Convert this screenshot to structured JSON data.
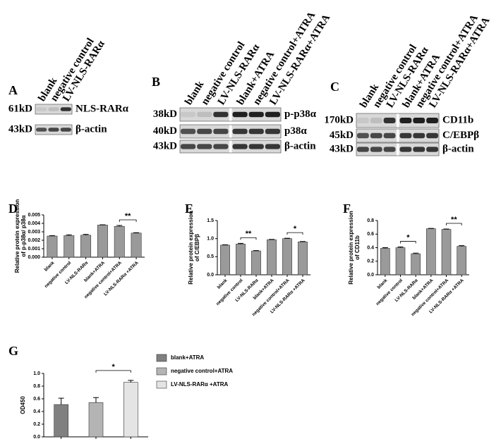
{
  "blots": [
    {
      "label": "A",
      "lanes": [
        "blank",
        "negative control",
        "LV-NLS-RARα"
      ],
      "rows": [
        {
          "kd": "61kD",
          "name": "NLS-RARα"
        },
        {
          "kd": "43kD",
          "name": "β-actin"
        }
      ]
    },
    {
      "label": "B",
      "lanes": [
        "blank",
        "negative control",
        "LV-NLS-RARα",
        "blank+ATRA",
        "negative control+ATRA",
        "LV-NLS-RARα+ATRA"
      ],
      "rows": [
        {
          "kd": "38kD",
          "name": "p-p38α"
        },
        {
          "kd": "40kD",
          "name": "p38α"
        },
        {
          "kd": "43kD",
          "name": "β-actin"
        }
      ]
    },
    {
      "label": "C",
      "lanes": [
        "blank",
        "negative control",
        "LV-NLS-RARα",
        "blank+ATRA",
        "negative control+ATRA",
        "LV-NLS-RARα+ATRA"
      ],
      "rows": [
        {
          "kd": "170kD",
          "name": "CD11b"
        },
        {
          "kd": "45kD",
          "name": "C/EBPβ"
        },
        {
          "kd": "43kD",
          "name": "β-actin"
        }
      ]
    }
  ],
  "chart_data": [
    {
      "type": "bar",
      "panel": "D",
      "ylabel": [
        "Relative protein expression",
        "of p-p38α/ p38α"
      ],
      "categories": [
        "blank",
        "negative control",
        "LV-NLS-RARα",
        "blank+ATRA",
        "negative control+ATRA",
        "LV-NLS-RARα +ATRA"
      ],
      "values": [
        0.0025,
        0.00255,
        0.0026,
        0.0038,
        0.00365,
        0.00285
      ],
      "errors": [
        5e-05,
        0.0001,
        0.0001,
        3e-05,
        0.0001,
        5e-05
      ],
      "color": "#9a9a9a",
      "ylim": [
        0,
        0.005
      ],
      "yticks": [
        {
          "value": 0,
          "label": "0.000"
        },
        {
          "value": 0.001,
          "label": "0.001"
        },
        {
          "value": 0.002,
          "label": "0.002"
        },
        {
          "value": 0.003,
          "label": "0.003"
        },
        {
          "value": 0.004,
          "label": "0.004"
        },
        {
          "value": 0.005,
          "label": "0.005"
        }
      ],
      "annotations": [
        {
          "text": "**",
          "from": 4,
          "to": 5
        }
      ]
    },
    {
      "type": "bar",
      "panel": "E",
      "ylabel": [
        "Relative protein expression",
        "of C/EBPβ"
      ],
      "categories": [
        "blank",
        "negative control",
        "LV-NLS-RARα",
        "blank+ATRA",
        "negative control+ATRA",
        "LV-NLS-RARα +ATRA"
      ],
      "values": [
        0.82,
        0.85,
        0.66,
        0.97,
        1.0,
        0.91
      ],
      "errors": [
        0.01,
        0.02,
        0.01,
        0.01,
        0.01,
        0.01
      ],
      "color": "#9a9a9a",
      "ylim": [
        0,
        1.5
      ],
      "yticks": [
        {
          "value": 0,
          "label": "0.0"
        },
        0.5,
        {
          "value": 1,
          "label": "1.0"
        },
        1.5
      ],
      "annotations": [
        {
          "text": "**",
          "from": 1,
          "to": 2
        },
        {
          "text": "*",
          "from": 4,
          "to": 5
        }
      ]
    },
    {
      "type": "bar",
      "panel": "F",
      "ylabel": [
        "Relative protein expression",
        "of CD11b"
      ],
      "categories": [
        "blank",
        "negative control",
        "LV-NLS-RARα",
        "blank+ATRA",
        "negative control+ATRA",
        "LV-NLS-RARα +ATRA"
      ],
      "values": [
        0.39,
        0.4,
        0.31,
        0.68,
        0.67,
        0.42
      ],
      "errors": [
        0.01,
        0.01,
        0.01,
        0.005,
        0.005,
        0.01
      ],
      "color": "#9a9a9a",
      "ylim": [
        0,
        0.8
      ],
      "yticks": [
        {
          "value": 0,
          "label": "0.0"
        },
        0.2,
        0.4,
        0.6,
        0.8
      ],
      "annotations": [
        {
          "text": "*",
          "from": 1,
          "to": 2
        },
        {
          "text": "**",
          "from": 4,
          "to": 5
        }
      ]
    },
    {
      "type": "legend-bar",
      "panel": "G",
      "ylabel": [
        "OD450"
      ],
      "categories": [
        "blank+ATRA",
        "negative control+ATRA",
        "LV-NLS-RARα +ATRA"
      ],
      "values": [
        0.51,
        0.54,
        0.86
      ],
      "errors": [
        0.1,
        0.08,
        0.03
      ],
      "colors": [
        "#808080",
        "#b4b4b4",
        "#e4e4e4"
      ],
      "ylim": [
        0,
        1
      ],
      "yticks": [
        {
          "value": 0,
          "label": "0.0"
        },
        0.2,
        0.4,
        0.6,
        0.8,
        {
          "value": 1,
          "label": "1.0"
        }
      ],
      "annotations": [
        {
          "text": "*",
          "from": 1,
          "to": 2
        }
      ]
    }
  ]
}
